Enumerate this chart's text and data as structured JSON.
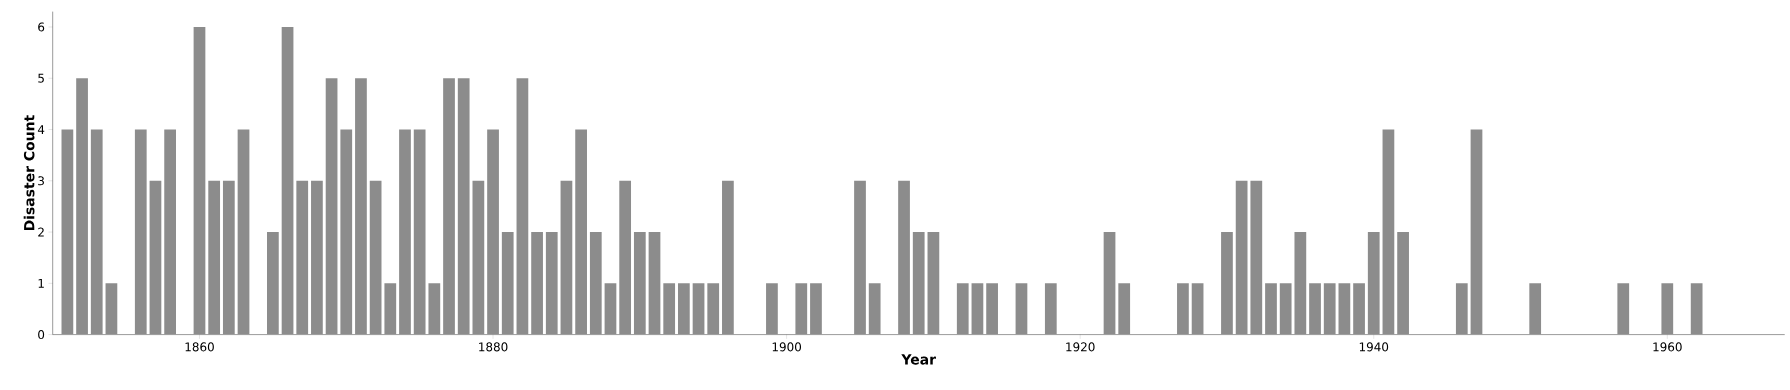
{
  "chart_data": {
    "type": "bar",
    "xlabel": "Year",
    "ylabel": "Disaster Count",
    "x": [
      1851,
      1852,
      1853,
      1854,
      1856,
      1857,
      1858,
      1860,
      1861,
      1862,
      1863,
      1865,
      1866,
      1867,
      1868,
      1869,
      1870,
      1871,
      1872,
      1873,
      1874,
      1875,
      1876,
      1877,
      1878,
      1879,
      1880,
      1881,
      1882,
      1883,
      1884,
      1885,
      1886,
      1887,
      1888,
      1889,
      1890,
      1891,
      1892,
      1893,
      1894,
      1895,
      1896,
      1899,
      1901,
      1902,
      1905,
      1906,
      1908,
      1909,
      1910,
      1912,
      1913,
      1914,
      1916,
      1918,
      1922,
      1923,
      1927,
      1928,
      1930,
      1931,
      1932,
      1933,
      1934,
      1935,
      1936,
      1937,
      1938,
      1939,
      1940,
      1941,
      1942,
      1946,
      1947,
      1951,
      1957,
      1960,
      1962
    ],
    "values": [
      4,
      5,
      4,
      1,
      4,
      3,
      4,
      6,
      3,
      3,
      4,
      2,
      6,
      3,
      3,
      5,
      4,
      5,
      3,
      1,
      4,
      4,
      1,
      5,
      5,
      3,
      4,
      2,
      5,
      2,
      2,
      3,
      4,
      2,
      1,
      3,
      2,
      2,
      1,
      1,
      1,
      1,
      3,
      1,
      1,
      1,
      3,
      1,
      3,
      2,
      2,
      1,
      1,
      1,
      1,
      1,
      2,
      1,
      1,
      1,
      2,
      3,
      3,
      1,
      1,
      2,
      1,
      1,
      1,
      1,
      2,
      4,
      2,
      1,
      4,
      1,
      1,
      1,
      1
    ],
    "color": "#8c8c8c",
    "xlim": [
      1850,
      1968
    ],
    "ylim": [
      0,
      6.3
    ],
    "xticks": [
      1860,
      1880,
      1900,
      1920,
      1940,
      1960
    ],
    "yticks": [
      0,
      1,
      2,
      3,
      4,
      5,
      6
    ],
    "grid": false
  }
}
